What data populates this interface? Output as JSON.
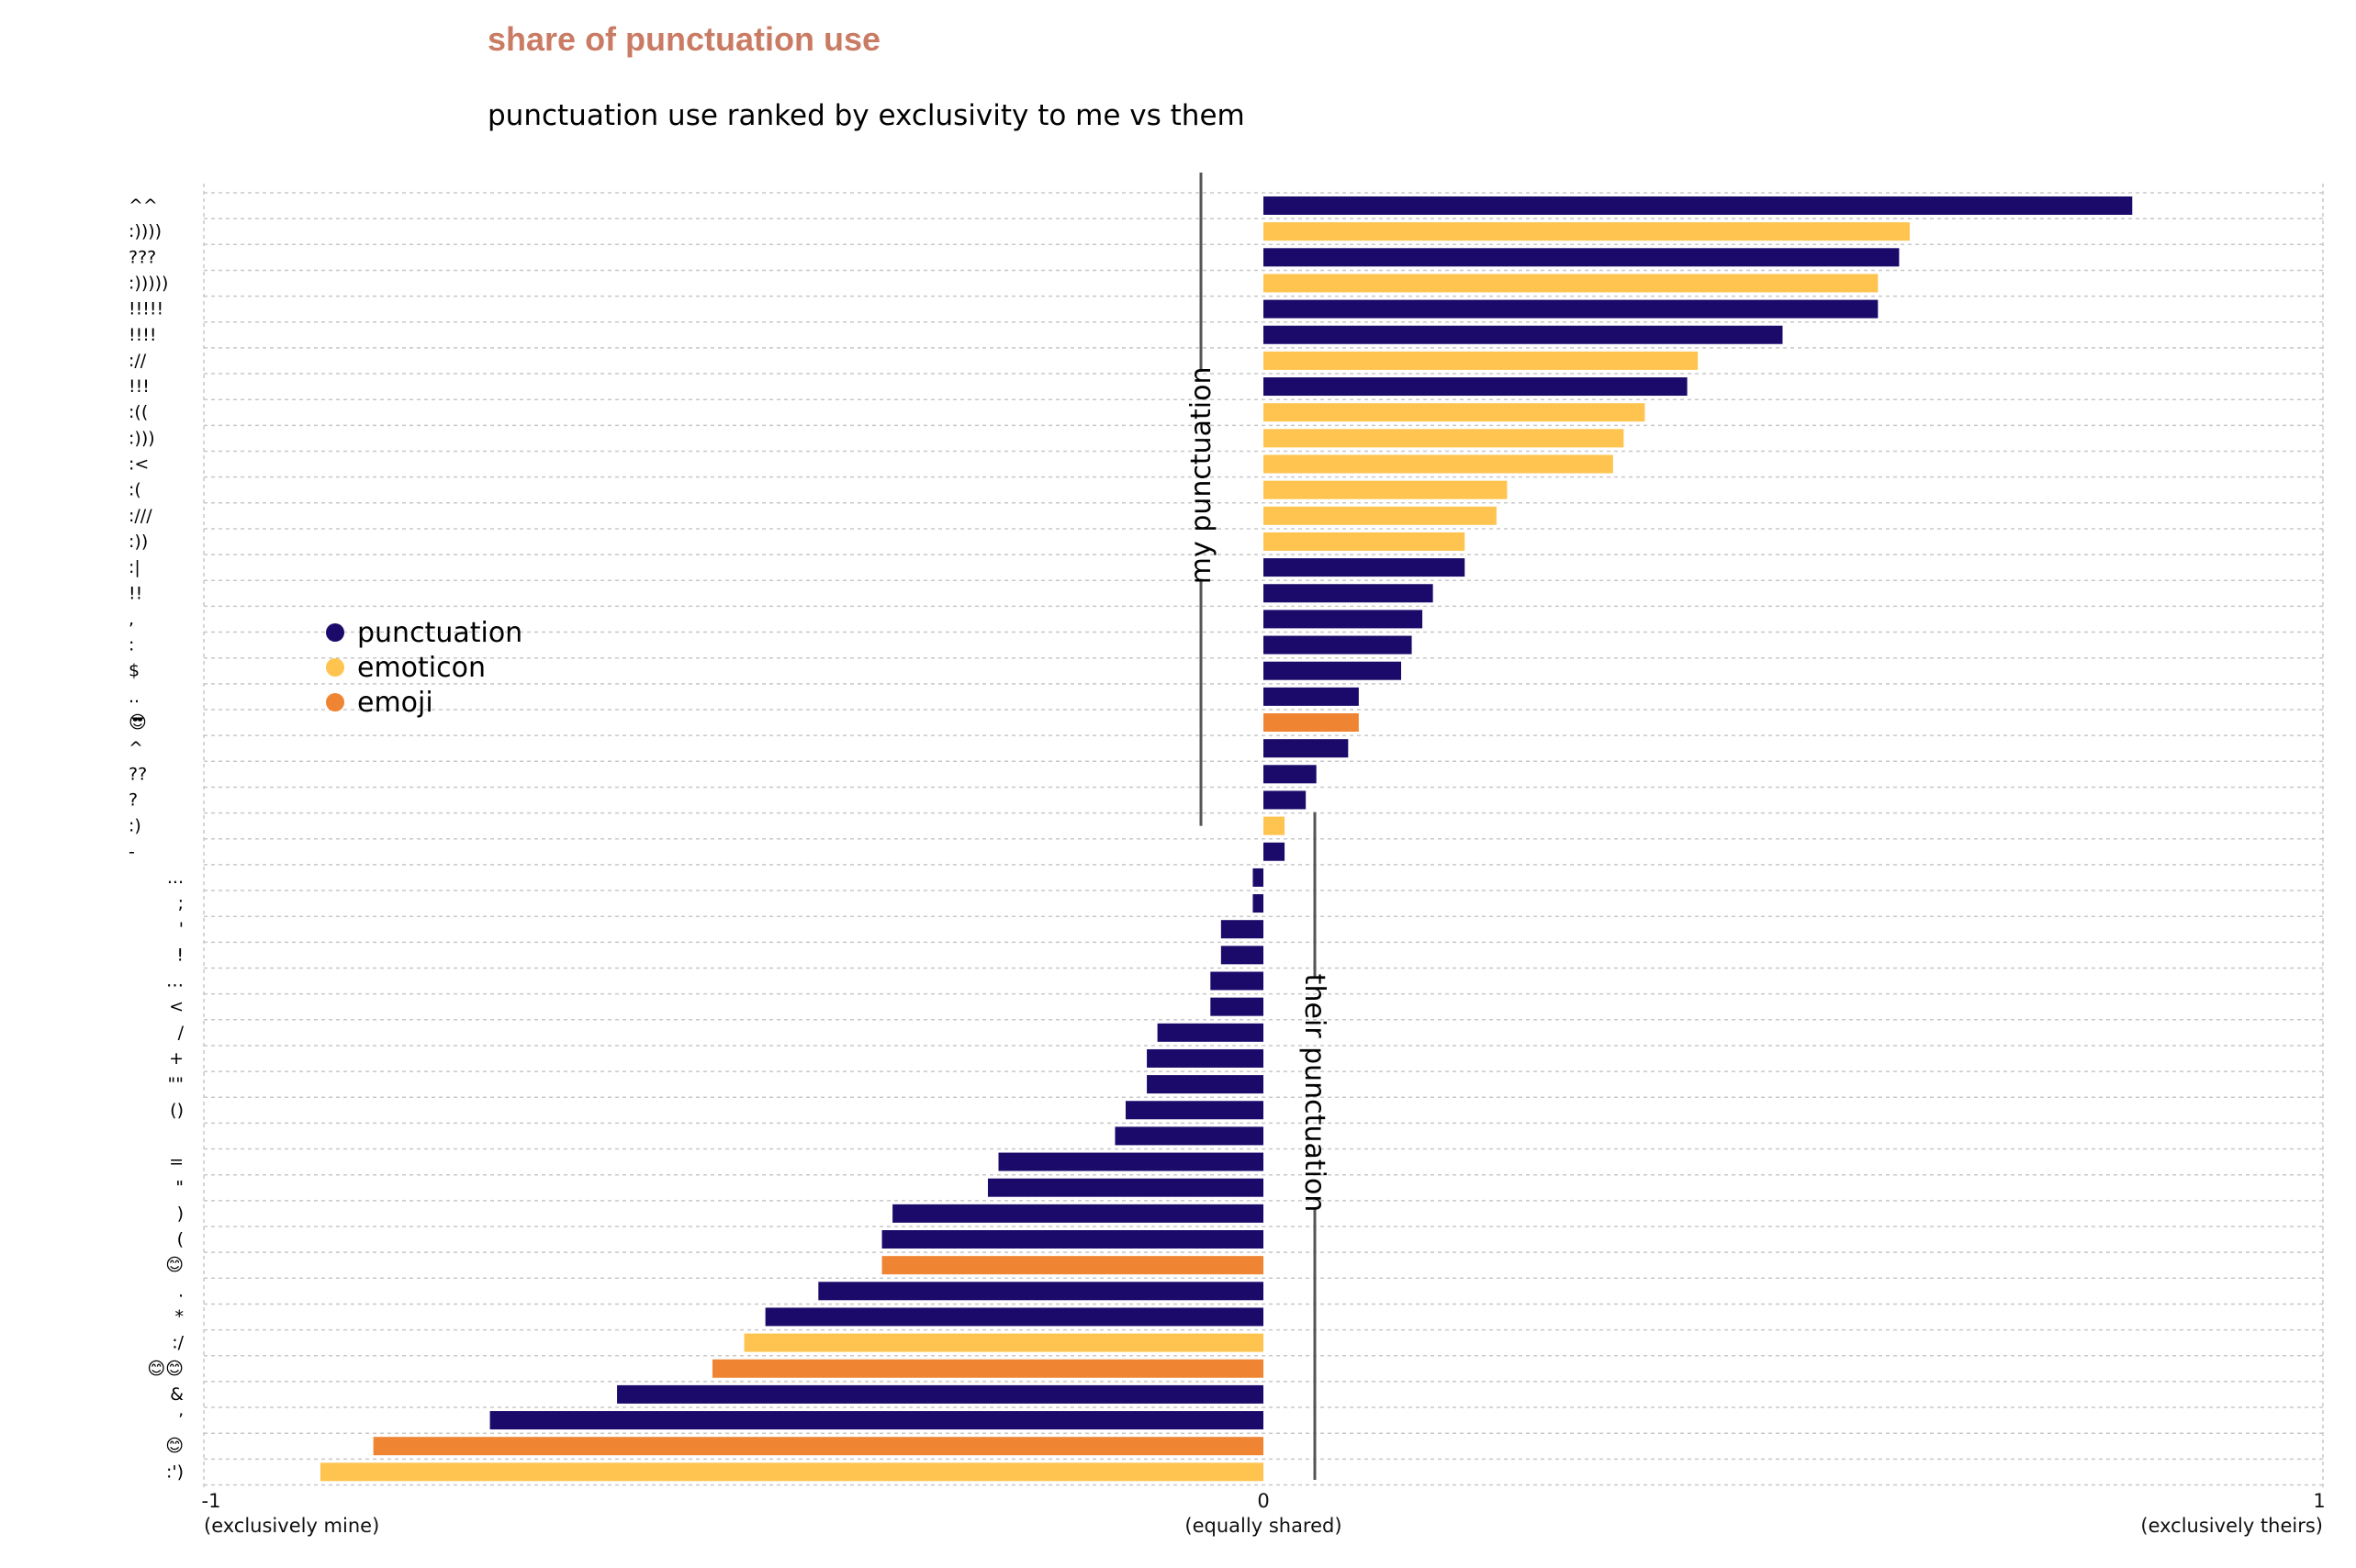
{
  "header": {
    "title": "share of punctuation use",
    "subtitle": "punctuation use ranked by exclusivity to me vs them"
  },
  "legend": {
    "items": [
      {
        "label": "punctuation",
        "color": "#1c0a6b"
      },
      {
        "label": "emoticon",
        "color": "#fec44f"
      },
      {
        "label": "emoji",
        "color": "#ef8432"
      }
    ]
  },
  "colors": {
    "punctuation": "#1c0a6b",
    "emoticon": "#fec44f",
    "emoji": "#ef8432",
    "title": "#c97b64"
  },
  "chart_data": {
    "type": "bar",
    "orientation": "horizontal",
    "xlim": [
      -1,
      1
    ],
    "grid": true,
    "legend_position": "left",
    "x_ticks": [
      {
        "value": -1,
        "label": "-1",
        "sublabel": "(exclusively mine)"
      },
      {
        "value": 0,
        "label": "0",
        "sublabel": "(equally shared)"
      },
      {
        "value": 1,
        "label": "1",
        "sublabel": "(exclusively theirs)"
      }
    ],
    "annotations": [
      {
        "text": "my punctuation",
        "side": "mine"
      },
      {
        "text": "their punctuation",
        "side": "theirs"
      }
    ],
    "categories": [
      "^^",
      ":))))",
      "???",
      ":)))))",
      "!!!!!",
      "!!!!",
      "://",
      "!!!",
      ":((",
      ":)))",
      ":<",
      ":(",
      ":///",
      ":))",
      ":|",
      "!!",
      ",",
      ":",
      "$",
      "..",
      "😎",
      "^",
      "??",
      "?",
      ":)",
      "-",
      "...",
      ";",
      "'",
      "!",
      "…",
      "<",
      "/",
      "+",
      "\"\"",
      "()",
      "",
      "=",
      "\"",
      ")",
      "(",
      "😊",
      ".",
      "*",
      ":/",
      "😊😊",
      "&",
      "’",
      "😊",
      ":')"
    ],
    "values": [
      0.82,
      0.61,
      0.6,
      0.58,
      0.58,
      0.49,
      0.41,
      0.4,
      0.36,
      0.34,
      0.33,
      0.23,
      0.22,
      0.19,
      0.19,
      0.16,
      0.15,
      0.14,
      0.13,
      0.09,
      0.09,
      0.08,
      0.05,
      0.04,
      0.02,
      0.02,
      -0.01,
      -0.01,
      -0.04,
      -0.04,
      -0.05,
      -0.05,
      -0.1,
      -0.11,
      -0.11,
      -0.13,
      -0.14,
      -0.25,
      -0.26,
      -0.35,
      -0.36,
      -0.36,
      -0.42,
      -0.47,
      -0.49,
      -0.52,
      -0.61,
      -0.73,
      -0.84,
      -0.89
    ],
    "kinds": [
      "punctuation",
      "emoticon",
      "punctuation",
      "emoticon",
      "punctuation",
      "punctuation",
      "emoticon",
      "punctuation",
      "emoticon",
      "emoticon",
      "emoticon",
      "emoticon",
      "emoticon",
      "emoticon",
      "punctuation",
      "punctuation",
      "punctuation",
      "punctuation",
      "punctuation",
      "punctuation",
      "emoji",
      "punctuation",
      "punctuation",
      "punctuation",
      "emoticon",
      "punctuation",
      "punctuation",
      "punctuation",
      "punctuation",
      "punctuation",
      "punctuation",
      "punctuation",
      "punctuation",
      "punctuation",
      "punctuation",
      "punctuation",
      "punctuation",
      "punctuation",
      "punctuation",
      "punctuation",
      "punctuation",
      "emoji",
      "punctuation",
      "punctuation",
      "emoticon",
      "emoji",
      "punctuation",
      "punctuation",
      "emoji",
      "emoticon"
    ]
  }
}
